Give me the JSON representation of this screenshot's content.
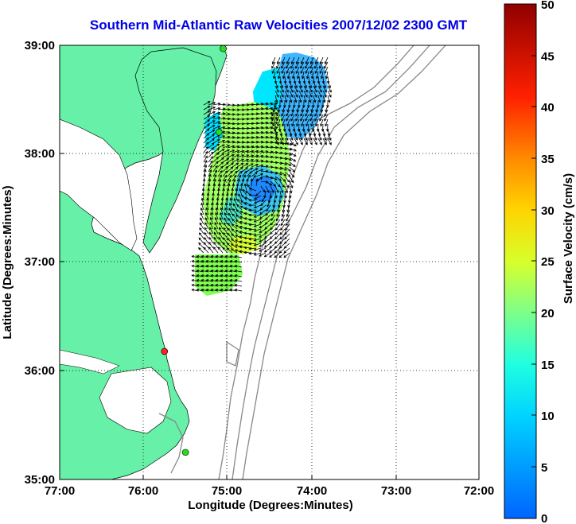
{
  "title": "Southern Mid-Atlantic Raw Velocities 2007/12/02 2300 GMT",
  "xlabel": "Longitude (Degrees:Minutes)",
  "ylabel": "Latitude (Degrees:Minutes)",
  "x_ticks": [
    "77:00",
    "76:00",
    "75:00",
    "74:00",
    "73:00",
    "72:00"
  ],
  "y_ticks": [
    "39:00",
    "38:00",
    "37:00",
    "36:00",
    "35:00"
  ],
  "colorbar": {
    "label": "Surface Velocity (cm/s)",
    "ticks": [
      "50",
      "45",
      "40",
      "35",
      "30",
      "25",
      "20",
      "15",
      "10",
      "5",
      "0"
    ],
    "range": [
      0,
      50
    ]
  },
  "colors": {
    "land": "#66f0a8",
    "title": "#0000e6",
    "bathymetry": "#888888",
    "station_green": "#22dd22",
    "station_red": "#ff2222"
  },
  "chart_data": {
    "type": "vector-map",
    "xlim": [
      -77,
      -72
    ],
    "ylim": [
      35,
      39
    ],
    "stations": [
      {
        "lon": -75.05,
        "lat": 38.97,
        "color": "green"
      },
      {
        "lon": -75.1,
        "lat": 38.2,
        "color": "green"
      },
      {
        "lon": -75.75,
        "lat": 36.18,
        "color": "red"
      },
      {
        "lon": -75.5,
        "lat": 35.25,
        "color": "green"
      }
    ]
  }
}
